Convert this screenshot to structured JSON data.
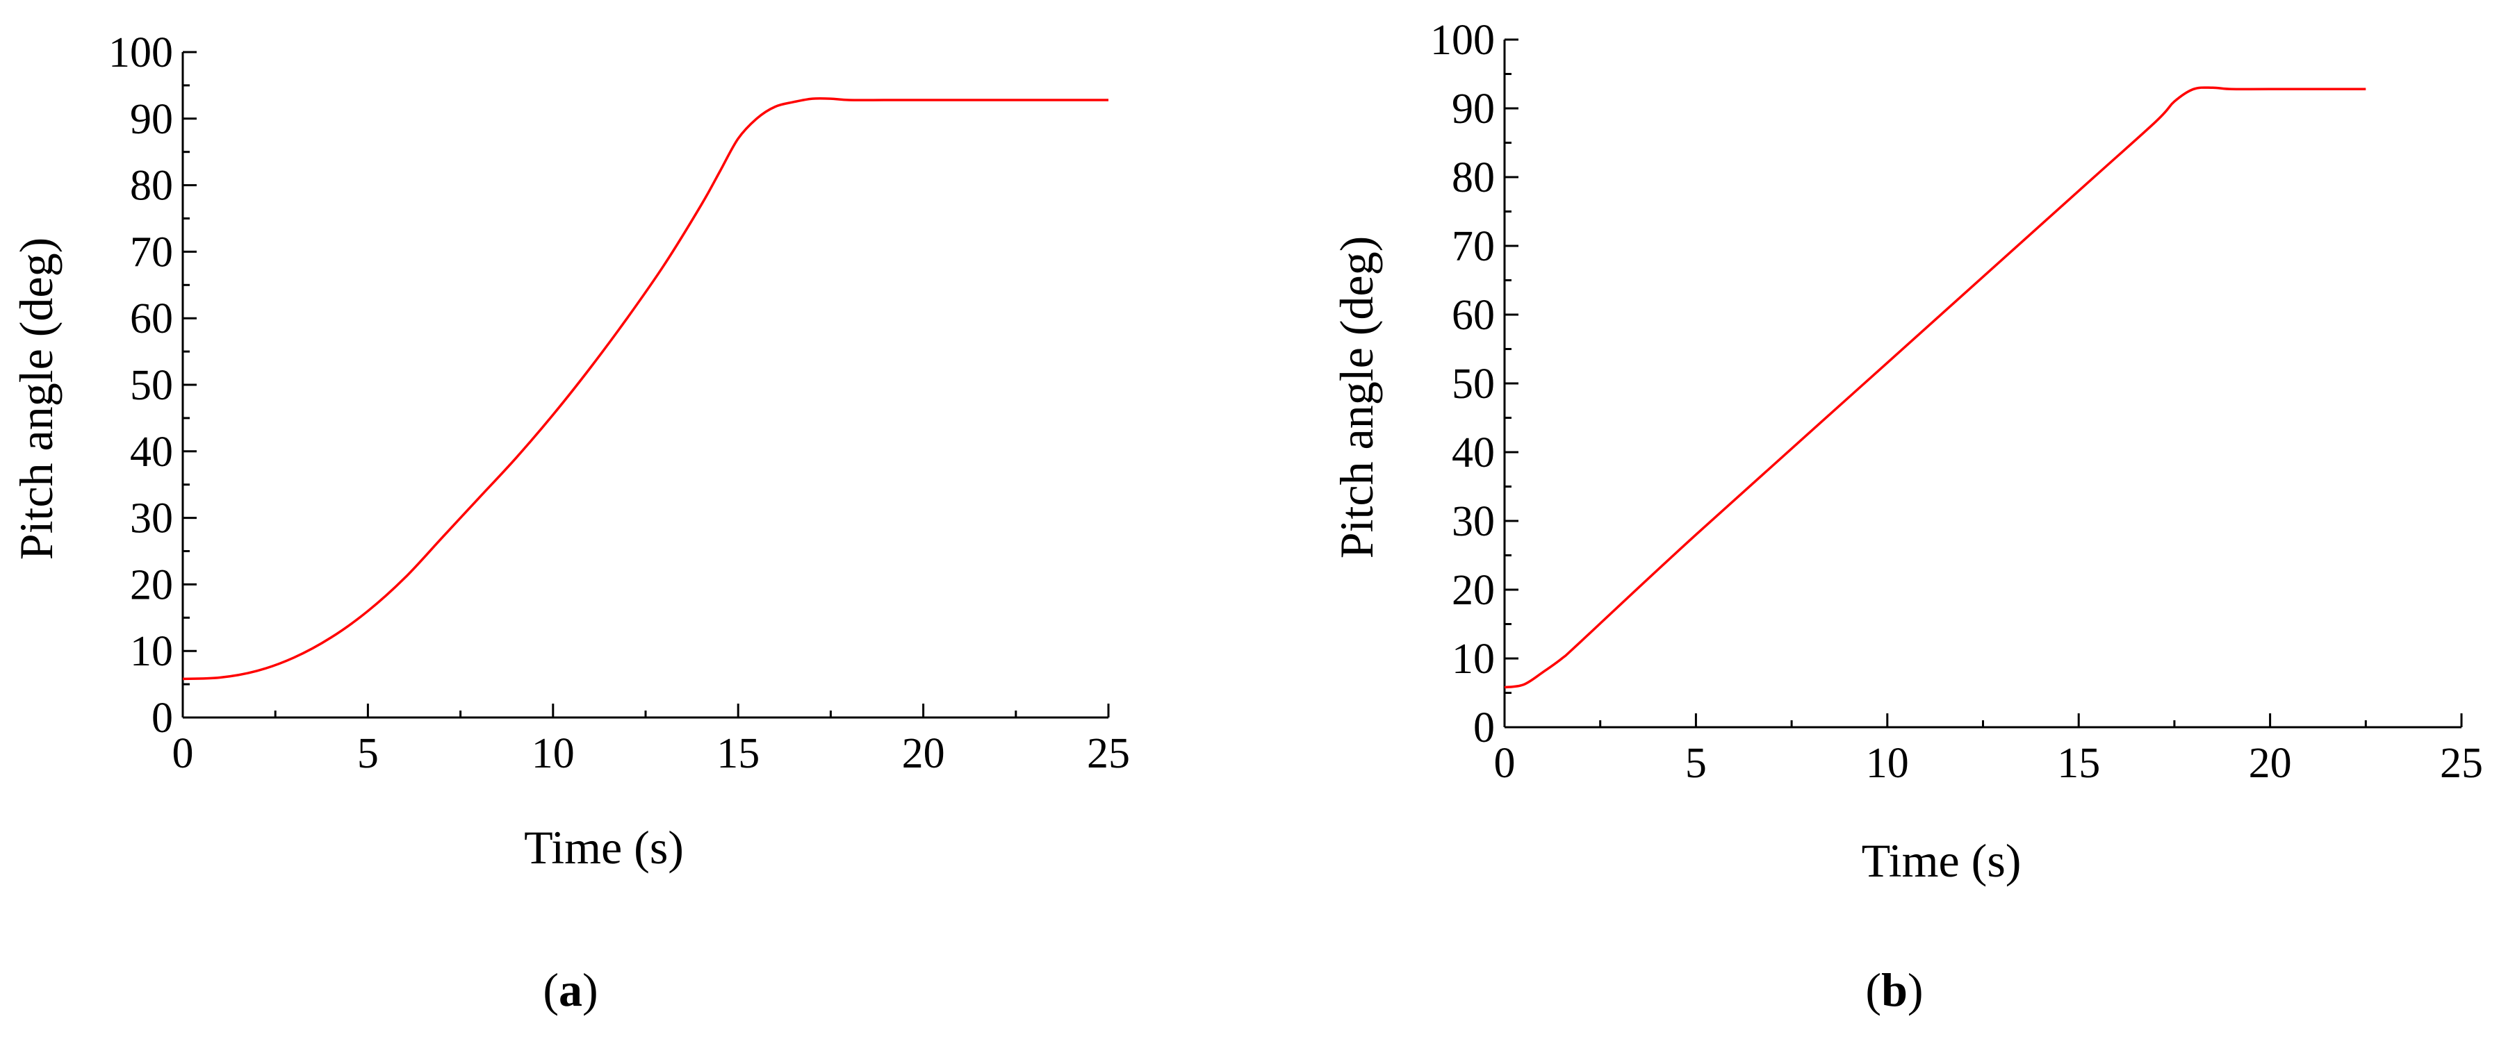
{
  "figure": {
    "panel_labels": [
      "a",
      "b"
    ]
  },
  "chart_data": [
    {
      "type": "line",
      "panel": "a",
      "xlabel": "Time (s)",
      "ylabel": "Pitch angle (deg)",
      "xlim": [
        0,
        25
      ],
      "ylim": [
        0,
        100
      ],
      "xticks": [
        0,
        5,
        10,
        15,
        20,
        25
      ],
      "yticks": [
        0,
        10,
        20,
        30,
        40,
        50,
        60,
        70,
        80,
        90,
        100
      ],
      "grid": false,
      "legend": "none",
      "series": [
        {
          "color": "#ff0000",
          "x": [
            0,
            1,
            2,
            3,
            4,
            5,
            6,
            7,
            8,
            9,
            10,
            11,
            12,
            13,
            14,
            14.5,
            15,
            15.5,
            16,
            16.5,
            17,
            17.5,
            18,
            19,
            20,
            22,
            25
          ],
          "y": [
            5.8,
            6,
            7,
            9,
            12,
            16,
            21,
            27,
            33,
            39,
            45.5,
            52.5,
            60,
            68,
            77,
            82,
            87,
            90,
            91.8,
            92.5,
            93,
            93,
            92.8,
            92.8,
            92.8,
            92.8,
            92.8
          ]
        }
      ]
    },
    {
      "type": "line",
      "panel": "b",
      "xlabel": "Time (s)",
      "ylabel": "Pitch angle (deg)",
      "xlim": [
        0,
        25
      ],
      "ylim": [
        0,
        100
      ],
      "xticks": [
        0,
        5,
        10,
        15,
        20,
        25
      ],
      "yticks": [
        0,
        10,
        20,
        30,
        40,
        50,
        60,
        70,
        80,
        90,
        100
      ],
      "grid": false,
      "legend": "none",
      "series": [
        {
          "color": "#ff0000",
          "x": [
            0,
            0.5,
            1,
            1.5,
            2,
            5,
            10,
            15,
            17,
            17.5,
            18,
            18.5,
            19,
            20,
            22.5
          ],
          "y": [
            5.8,
            6.2,
            8,
            10,
            12.5,
            28,
            53,
            78,
            88,
            91,
            92.8,
            93,
            92.8,
            92.8,
            92.8
          ]
        }
      ]
    }
  ]
}
